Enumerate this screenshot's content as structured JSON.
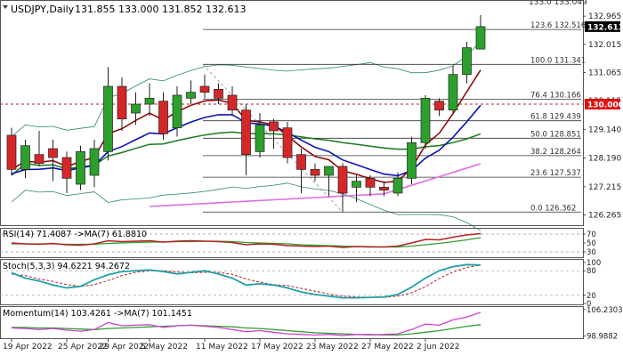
{
  "header": {
    "symbol_label": "USDJPY,Daily",
    "ohlc_label": "131.855 133.000 131.852 132.613",
    "top_cut_label": "133.0  133.049"
  },
  "colors": {
    "bull": "#2ca02c",
    "bear": "#d62728",
    "ma_fast": "#8b0000",
    "ma_mid": "#0a14b4",
    "ma_slow": "#1a7a1a",
    "ma_long": "#e06ee0",
    "bands": "#2e8b57",
    "fib_line": "#333333",
    "level_line": "#b22222",
    "price_box_bg": "#000000",
    "level_box_bg": "#e01010",
    "rsi": "#b22222",
    "rsi_ma": "#2ca02c",
    "stoch_k": "#20a0a8",
    "stoch_d": "#b22222",
    "momentum": "#d040d0",
    "momentum_ma": "#2ca02c"
  },
  "chart_data": {
    "type": "candlestick",
    "symbol": "USDJPY",
    "timeframe": "Daily",
    "last_price": 132.613,
    "horizontal_level": 130.0,
    "y_axis_ticks": [
      132.965,
      132.015,
      131.065,
      130.115,
      129.14,
      128.19,
      127.215,
      126.265
    ],
    "x_axis_labels": [
      "19 Apr 2022",
      "25 Apr 2022",
      "29 Apr 2022",
      "5 May 2022",
      "11 May 2022",
      "17 May 2022",
      "23 May 2022",
      "27 May 2022",
      "2 Jun 2022"
    ],
    "label_candle_index": [
      0,
      4,
      7,
      10,
      14,
      18,
      22,
      26,
      30
    ],
    "fibonacci": [
      {
        "label": "123.6 132.516",
        "value": 132.516
      },
      {
        "label": "100.0 131.341",
        "value": 131.341
      },
      {
        "label": "76.4 130.166",
        "value": 130.166
      },
      {
        "label": "61.8 129.439",
        "value": 129.439
      },
      {
        "label": "50.0 128.851",
        "value": 128.851
      },
      {
        "label": "38.2 128.264",
        "value": 128.264
      },
      {
        "label": "23.6 127.537",
        "value": 127.537
      },
      {
        "label": "0.0 126.362",
        "value": 126.362
      }
    ],
    "candles": [
      {
        "o": 128.95,
        "h": 129.2,
        "l": 127.6,
        "c": 127.8
      },
      {
        "o": 127.8,
        "h": 128.8,
        "l": 127.5,
        "c": 128.6
      },
      {
        "o": 128.3,
        "h": 129.1,
        "l": 127.9,
        "c": 128.0
      },
      {
        "o": 128.5,
        "h": 128.8,
        "l": 127.4,
        "c": 128.2
      },
      {
        "o": 128.2,
        "h": 128.4,
        "l": 127.0,
        "c": 127.5
      },
      {
        "o": 127.3,
        "h": 128.6,
        "l": 127.1,
        "c": 128.4
      },
      {
        "o": 127.6,
        "h": 128.8,
        "l": 127.2,
        "c": 128.5
      },
      {
        "o": 128.4,
        "h": 131.25,
        "l": 128.1,
        "c": 130.6
      },
      {
        "o": 130.6,
        "h": 130.9,
        "l": 129.1,
        "c": 129.5
      },
      {
        "o": 129.7,
        "h": 130.4,
        "l": 129.3,
        "c": 130.0
      },
      {
        "o": 130.0,
        "h": 130.7,
        "l": 129.6,
        "c": 130.2
      },
      {
        "o": 130.1,
        "h": 130.4,
        "l": 128.8,
        "c": 129.0
      },
      {
        "o": 129.2,
        "h": 130.6,
        "l": 128.9,
        "c": 130.3
      },
      {
        "o": 130.2,
        "h": 130.8,
        "l": 130.0,
        "c": 130.4
      },
      {
        "o": 130.6,
        "h": 131.0,
        "l": 130.2,
        "c": 130.4
      },
      {
        "o": 130.5,
        "h": 130.7,
        "l": 130.0,
        "c": 130.2
      },
      {
        "o": 130.3,
        "h": 130.6,
        "l": 129.6,
        "c": 129.8
      },
      {
        "o": 129.8,
        "h": 130.0,
        "l": 127.6,
        "c": 128.3
      },
      {
        "o": 128.4,
        "h": 129.7,
        "l": 128.2,
        "c": 129.3
      },
      {
        "o": 129.4,
        "h": 129.5,
        "l": 128.5,
        "c": 129.1
      },
      {
        "o": 129.2,
        "h": 129.4,
        "l": 128.0,
        "c": 128.2
      },
      {
        "o": 128.3,
        "h": 128.5,
        "l": 127.0,
        "c": 127.8
      },
      {
        "o": 127.8,
        "h": 128.0,
        "l": 127.4,
        "c": 127.6
      },
      {
        "o": 127.6,
        "h": 127.9,
        "l": 126.9,
        "c": 127.9
      },
      {
        "o": 127.9,
        "h": 128.0,
        "l": 126.362,
        "c": 127.0
      },
      {
        "o": 127.2,
        "h": 127.6,
        "l": 126.7,
        "c": 127.4
      },
      {
        "o": 127.5,
        "h": 127.6,
        "l": 126.9,
        "c": 127.2
      },
      {
        "o": 127.2,
        "h": 127.4,
        "l": 126.9,
        "c": 127.1
      },
      {
        "o": 127.0,
        "h": 127.7,
        "l": 126.9,
        "c": 127.5
      },
      {
        "o": 127.5,
        "h": 128.9,
        "l": 127.3,
        "c": 128.7
      },
      {
        "o": 128.7,
        "h": 130.3,
        "l": 128.5,
        "c": 130.2
      },
      {
        "o": 130.1,
        "h": 130.2,
        "l": 129.6,
        "c": 129.8
      },
      {
        "o": 129.8,
        "h": 131.3,
        "l": 129.7,
        "c": 131.0
      },
      {
        "o": 131.0,
        "h": 132.1,
        "l": 130.7,
        "c": 131.9
      },
      {
        "o": 131.855,
        "h": 133.0,
        "l": 131.852,
        "c": 132.613
      }
    ]
  },
  "indicators": {
    "rsi": {
      "label": "RSI(14) 71.4087  ->MA(7) 61.8810",
      "levels": [
        "70",
        "50",
        "30"
      ],
      "values": [
        50,
        48,
        47,
        49,
        46,
        45,
        48,
        55,
        53,
        54,
        55,
        52,
        54,
        55,
        54,
        53,
        51,
        46,
        48,
        47,
        44,
        43,
        42,
        43,
        40,
        42,
        41,
        41,
        43,
        50,
        58,
        57,
        63,
        68,
        71
      ],
      "ma_values": [
        48,
        48,
        48,
        48,
        47,
        47,
        47,
        49,
        50,
        51,
        52,
        52,
        53,
        53,
        54,
        54,
        53,
        51,
        50,
        49,
        48,
        46,
        45,
        44,
        43,
        42,
        42,
        41,
        41,
        43,
        46,
        49,
        53,
        57,
        62
      ]
    },
    "stoch": {
      "label": "Stoch(5,3,3) 94.6221 94.2672",
      "levels": [
        "100",
        "80",
        "20",
        "0"
      ],
      "k_values": [
        75,
        62,
        55,
        45,
        38,
        42,
        58,
        70,
        78,
        80,
        82,
        78,
        72,
        76,
        80,
        72,
        62,
        45,
        48,
        45,
        38,
        28,
        22,
        18,
        14,
        14,
        15,
        16,
        22,
        40,
        62,
        80,
        90,
        95,
        94
      ],
      "d_values": [
        72,
        68,
        60,
        54,
        46,
        42,
        46,
        56,
        68,
        76,
        80,
        80,
        77,
        75,
        76,
        76,
        71,
        60,
        52,
        46,
        44,
        37,
        30,
        23,
        18,
        16,
        15,
        15,
        18,
        26,
        41,
        61,
        77,
        88,
        94
      ]
    },
    "momentum": {
      "label": "Momentum(14) 103.4261  ->MA(7) 101.1451",
      "axis_labels": [
        "106.2303",
        "98.9882"
      ],
      "values": [
        100.5,
        100.4,
        100.2,
        100.4,
        100.1,
        99.9,
        100.2,
        101.5,
        100.9,
        101.0,
        101.1,
        100.6,
        100.9,
        101.0,
        100.8,
        100.6,
        100.2,
        99.8,
        100.0,
        99.7,
        99.4,
        99.3,
        99.2,
        99.3,
        99.1,
        99.3,
        99.2,
        99.3,
        99.4,
        100.2,
        101.2,
        101.0,
        102.0,
        102.5,
        103.4
      ],
      "ma_values": [
        100.6,
        100.6,
        100.5,
        100.5,
        100.4,
        100.3,
        100.2,
        100.4,
        100.5,
        100.6,
        100.7,
        100.8,
        100.9,
        101.0,
        100.9,
        100.8,
        100.7,
        100.5,
        100.4,
        100.2,
        100.0,
        99.8,
        99.6,
        99.5,
        99.4,
        99.3,
        99.3,
        99.2,
        99.2,
        99.4,
        99.7,
        100.0,
        100.4,
        100.8,
        101.1
      ]
    }
  }
}
